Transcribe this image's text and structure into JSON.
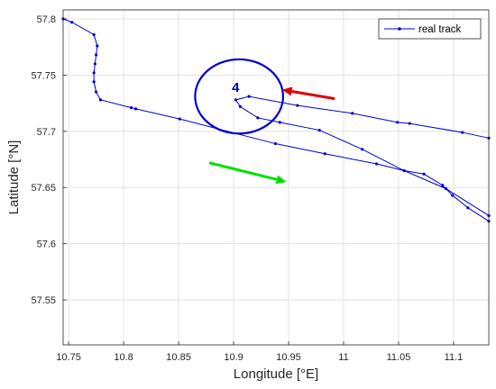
{
  "chart_data": {
    "type": "line",
    "title": "",
    "xlabel": "Longitude [°E]",
    "ylabel": "Latitude [°N]",
    "xlim": [
      10.745,
      11.132
    ],
    "ylim": [
      57.51,
      57.808
    ],
    "xticks": [
      10.75,
      10.8,
      10.85,
      10.9,
      10.95,
      11,
      11.05,
      11.1
    ],
    "xtick_labels": [
      "10.75",
      "10.8",
      "10.85",
      "10.9",
      "10.95",
      "11",
      "11.05",
      "11.1"
    ],
    "yticks": [
      57.55,
      57.6,
      57.65,
      57.7,
      57.75,
      57.8
    ],
    "ytick_labels": [
      "57.55",
      "57.6",
      "57.65",
      "57.7",
      "57.75",
      "57.8"
    ],
    "grid": true,
    "legend_location": "top-right",
    "series": [
      {
        "name": "real track",
        "color": "#0000cc",
        "marker": "dot",
        "points": [
          [
            10.745,
            57.8
          ],
          [
            10.753,
            57.797
          ],
          [
            10.773,
            57.786
          ],
          [
            10.776,
            57.776
          ],
          [
            10.775,
            57.768
          ],
          [
            10.774,
            57.76
          ],
          [
            10.773,
            57.752
          ],
          [
            10.773,
            57.744
          ],
          [
            10.775,
            57.735
          ],
          [
            10.779,
            57.728
          ],
          [
            10.807,
            57.721
          ],
          [
            10.811,
            57.72
          ],
          [
            10.851,
            57.711
          ],
          [
            10.938,
            57.689
          ],
          [
            10.983,
            57.68
          ],
          [
            11.03,
            57.671
          ],
          [
            11.055,
            57.665
          ],
          [
            11.093,
            57.649
          ],
          [
            11.132,
            57.625
          ],
          [
            null,
            null
          ],
          [
            11.132,
            57.62
          ],
          [
            11.113,
            57.632
          ],
          [
            11.099,
            57.643
          ],
          [
            11.09,
            57.652
          ],
          [
            11.073,
            57.662
          ],
          [
            11.055,
            57.665
          ],
          [
            11.017,
            57.684
          ],
          [
            10.978,
            57.701
          ],
          [
            10.942,
            57.708
          ],
          [
            10.922,
            57.712
          ],
          [
            10.906,
            57.722
          ],
          [
            10.902,
            57.728
          ],
          [
            10.914,
            57.731
          ],
          [
            10.958,
            57.723
          ],
          [
            11.008,
            57.716
          ],
          [
            11.049,
            57.708
          ],
          [
            11.06,
            57.707
          ],
          [
            11.108,
            57.699
          ],
          [
            11.132,
            57.694
          ]
        ]
      }
    ],
    "annotations": {
      "zone_label": "4",
      "zone_circle": {
        "cx": 10.905,
        "cy": 57.731,
        "rx": 0.04,
        "ry": 0.033,
        "color": "#0000cc"
      },
      "red_arrow": {
        "from": [
          10.992,
          57.729
        ],
        "to": [
          10.944,
          57.737
        ],
        "color": "#e00000"
      },
      "green_arrow": {
        "from": [
          10.878,
          57.672
        ],
        "to": [
          10.948,
          57.655
        ],
        "color": "#00e000"
      }
    }
  }
}
